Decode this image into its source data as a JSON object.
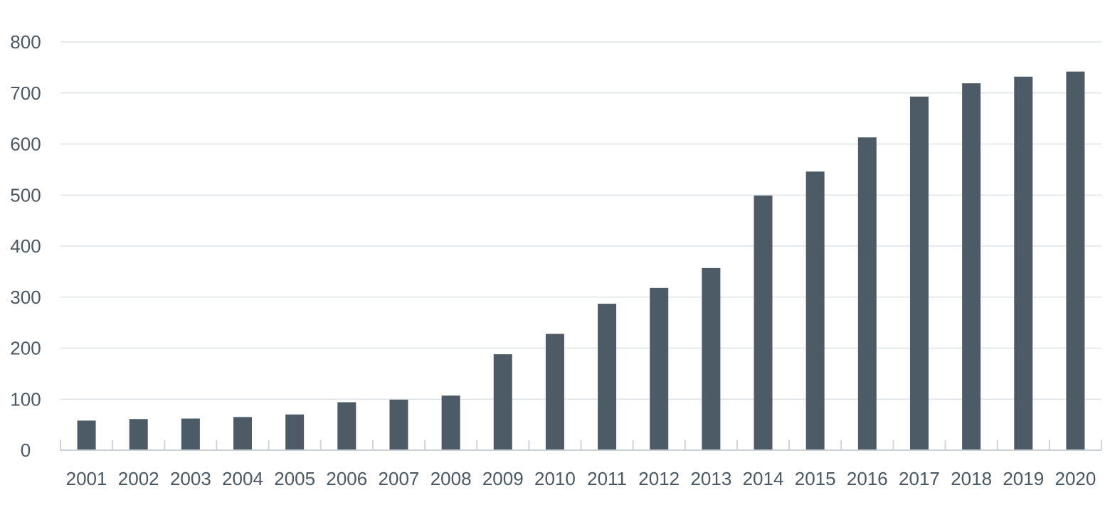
{
  "chart_data": {
    "type": "bar",
    "title": "",
    "xlabel": "",
    "ylabel": "",
    "categories": [
      "2001",
      "2002",
      "2003",
      "2004",
      "2005",
      "2006",
      "2007",
      "2008",
      "2009",
      "2010",
      "2011",
      "2012",
      "2013",
      "2014",
      "2015",
      "2016",
      "2017",
      "2018",
      "2019",
      "2020"
    ],
    "values": [
      58,
      61,
      62,
      65,
      70,
      94,
      99,
      107,
      188,
      228,
      287,
      318,
      357,
      499,
      546,
      613,
      693,
      719,
      732,
      742
    ],
    "ylim": [
      0,
      800
    ],
    "yticks": [
      "0",
      "100",
      "200",
      "300",
      "400",
      "500",
      "600",
      "700",
      "800"
    ],
    "grid": true,
    "legend": "none",
    "colors": {
      "bar": "#4d5b66",
      "text": "#4a5864",
      "grid": "#dfe3e6"
    }
  }
}
